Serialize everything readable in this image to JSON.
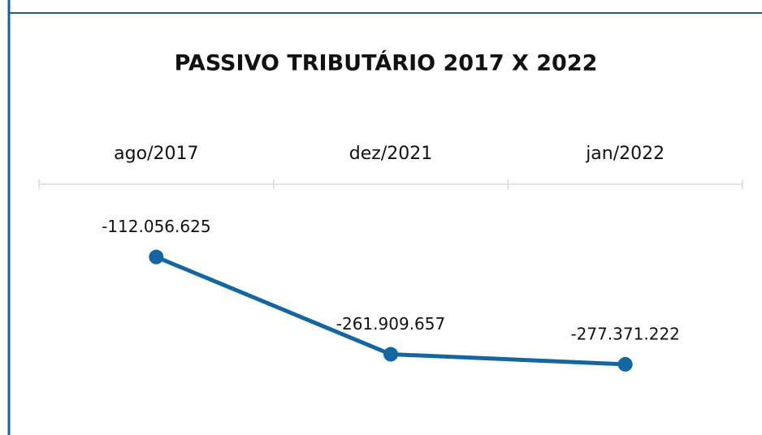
{
  "chart_data": {
    "type": "line",
    "title": "PASSIVO TRIBUTÁRIO 2017 X 2022",
    "categories": [
      "ago/2017",
      "dez/2021",
      "jan/2022"
    ],
    "series": [
      {
        "name": null,
        "color": "#1565a0",
        "values": [
          -112056625,
          -261909657,
          -277371222
        ],
        "value_labels": [
          "-112.056.625",
          "-261.909.657",
          "-277.371.222"
        ]
      }
    ]
  }
}
